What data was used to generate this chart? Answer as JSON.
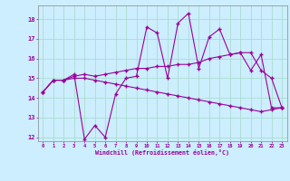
{
  "xlabel": "Windchill (Refroidissement éolien,°C)",
  "background_color": "#cceeff",
  "grid_color": "#aaddcc",
  "line_color": "#990099",
  "xlim": [
    -0.5,
    23.5
  ],
  "ylim": [
    11.8,
    18.7
  ],
  "yticks": [
    12,
    13,
    14,
    15,
    16,
    17,
    18
  ],
  "xticks": [
    0,
    1,
    2,
    3,
    4,
    5,
    6,
    7,
    8,
    9,
    10,
    11,
    12,
    13,
    14,
    15,
    16,
    17,
    18,
    19,
    20,
    21,
    22,
    23
  ],
  "series1": [
    14.3,
    14.9,
    14.9,
    15.2,
    11.9,
    12.6,
    12.0,
    14.2,
    15.0,
    15.1,
    17.6,
    17.3,
    15.0,
    17.8,
    18.3,
    15.5,
    17.1,
    17.5,
    16.2,
    16.3,
    15.4,
    16.2,
    13.5,
    13.5
  ],
  "series2": [
    14.3,
    14.9,
    14.9,
    15.1,
    15.2,
    15.1,
    15.2,
    15.3,
    15.4,
    15.5,
    15.5,
    15.6,
    15.6,
    15.7,
    15.7,
    15.8,
    16.0,
    16.1,
    16.2,
    16.3,
    16.3,
    15.4,
    15.0,
    13.5
  ],
  "series3": [
    14.3,
    14.9,
    14.9,
    15.0,
    15.0,
    14.9,
    14.8,
    14.7,
    14.6,
    14.5,
    14.4,
    14.3,
    14.2,
    14.1,
    14.0,
    13.9,
    13.8,
    13.7,
    13.6,
    13.5,
    13.4,
    13.3,
    13.4,
    13.5
  ]
}
